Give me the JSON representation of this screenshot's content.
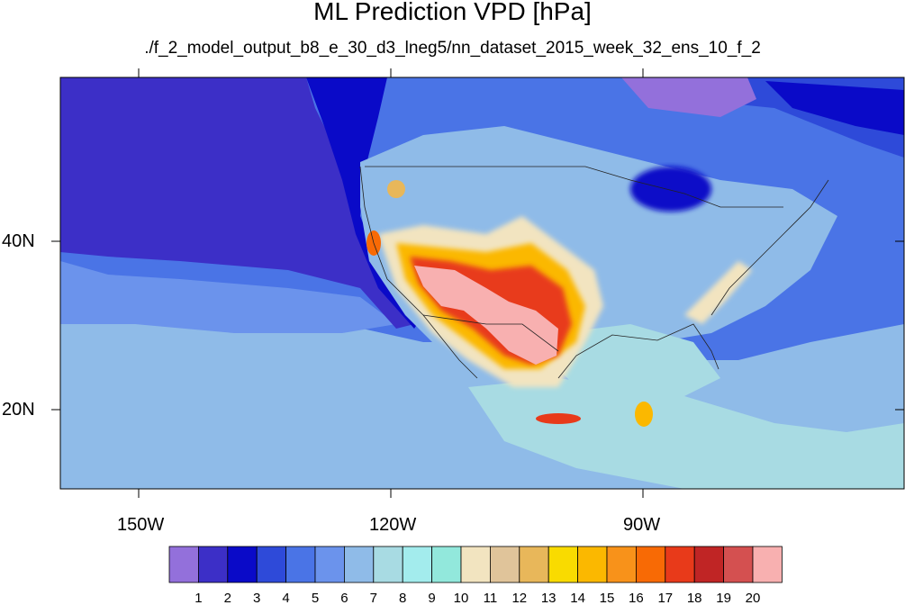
{
  "title": "ML Prediction VPD [hPa]",
  "subtitle": "./f_2_model_output_b8_e_30_d3_lneg5/nn_dataset_2015_week_32_ens_10_f_2",
  "axes": {
    "x_labels": [
      "150W",
      "120W",
      "90W"
    ],
    "y_labels": [
      "40N",
      "20N"
    ]
  },
  "colorbar": {
    "labels": [
      "1",
      "2",
      "3",
      "4",
      "5",
      "6",
      "7",
      "8",
      "9",
      "10",
      "11",
      "12",
      "13",
      "14",
      "15",
      "16",
      "17",
      "18",
      "19",
      "20"
    ],
    "colors": [
      "#9370db",
      "#3c2fc7",
      "#0a0ac8",
      "#2e4ad9",
      "#4a74e6",
      "#6b93ec",
      "#8fbbe8",
      "#a8dbe3",
      "#a3eced",
      "#92e8dc",
      "#f2e4c0",
      "#e0c49a",
      "#e8b75a",
      "#f9db00",
      "#fbb800",
      "#f8921a",
      "#f86a05",
      "#e83a1a",
      "#c02525",
      "#d45050",
      "#f8b0b0"
    ]
  },
  "style": {
    "ocean_color": "#4a74e6",
    "frame_color": "#000000"
  }
}
